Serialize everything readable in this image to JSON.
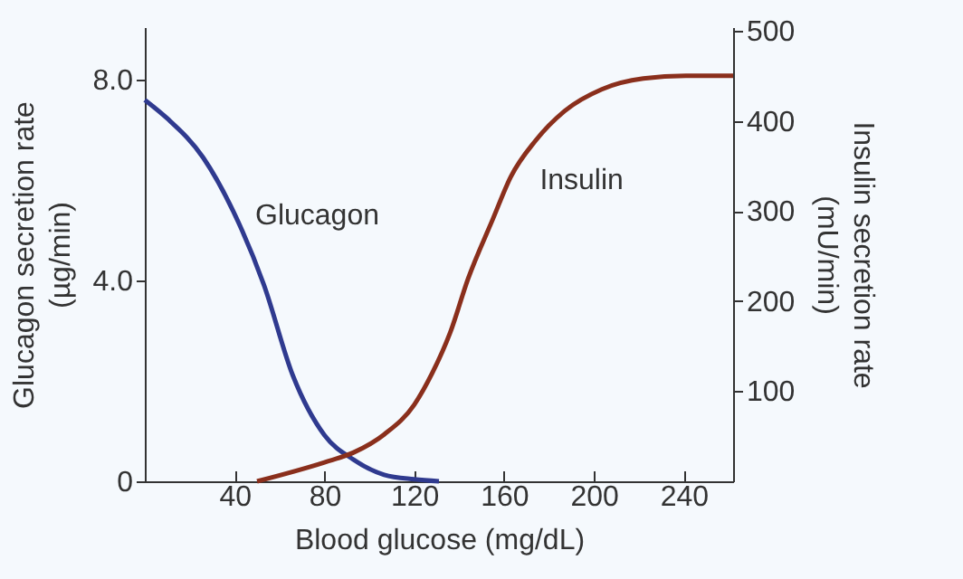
{
  "chart_data": {
    "type": "line",
    "xlabel": "Blood glucose (mg/dL)",
    "ylabel": "Glucagon secretion rate (µg/min)",
    "y2label": "Insulin secretion rate (mU/min)",
    "xlim": [
      0,
      262
    ],
    "xticks": [
      40,
      80,
      120,
      160,
      200,
      240
    ],
    "ylim": [
      0,
      9.05
    ],
    "yticks": [
      0,
      {
        "value": 4,
        "label": "4.0"
      },
      {
        "value": 8,
        "label": "8.0"
      }
    ],
    "y2lim": [
      0,
      504
    ],
    "y2ticks": [
      100,
      200,
      300,
      400,
      500
    ],
    "grid": false,
    "marker": "none",
    "line_style": "solid",
    "series": [
      {
        "name": "Glucagon",
        "color": "#2f3a8f",
        "x": [
          0,
          10,
          26,
          39.5,
          53,
          66,
          80,
          93,
          106.6,
          120,
          131
        ],
        "values": [
          7.6,
          7.23,
          6.45,
          5.37,
          3.92,
          2.1,
          0.92,
          0.43,
          0.13,
          0.04,
          0
        ]
      },
      {
        "name": "Insulin",
        "color": "#8a2f1c",
        "axis": "y2",
        "x": [
          50,
          80,
          93,
          106.6,
          120,
          128,
          136,
          144,
          155,
          163,
          174,
          187,
          203.5,
          222,
          241,
          262
        ],
        "values": [
          0,
          21,
          32,
          52,
          85,
          120,
          165,
          225,
          291,
          338,
          378,
          411,
          435,
          447,
          450,
          450
        ]
      }
    ]
  }
}
